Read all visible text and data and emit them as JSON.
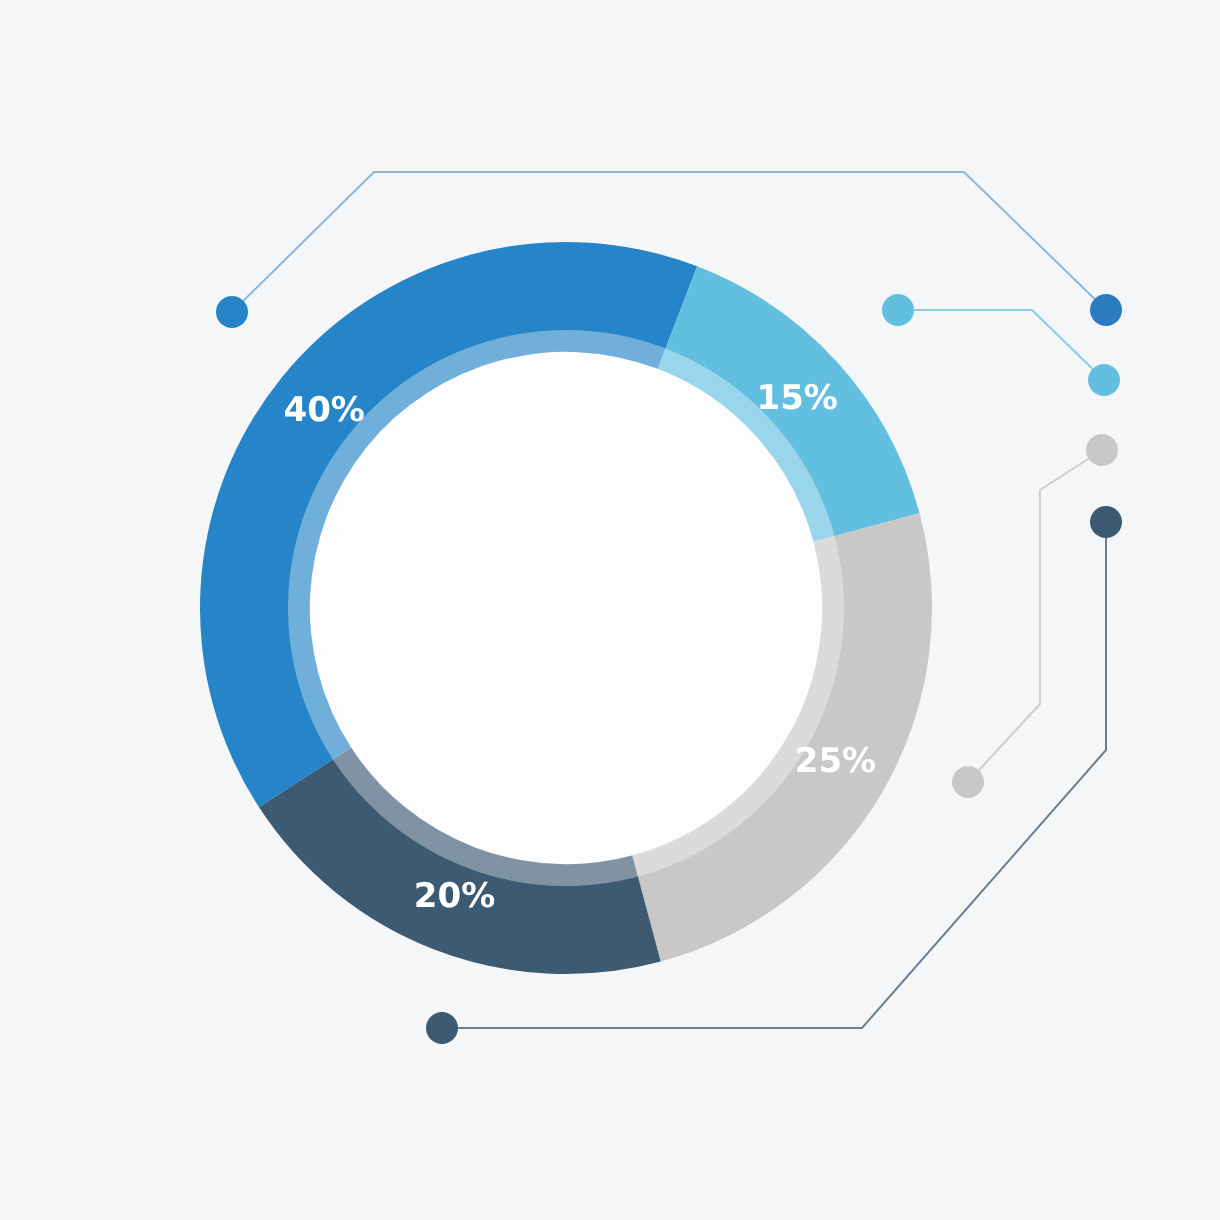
{
  "chart_data": {
    "type": "donut",
    "categories": [
      null,
      null,
      null,
      null
    ],
    "values": [
      40,
      15,
      25,
      20
    ],
    "colors": [
      "#2585c8",
      "#63bfe0",
      "#c9c8c6",
      "#3d5a73"
    ],
    "value_labels": [
      "40%",
      "15%",
      "25%",
      "20%"
    ]
  }
}
